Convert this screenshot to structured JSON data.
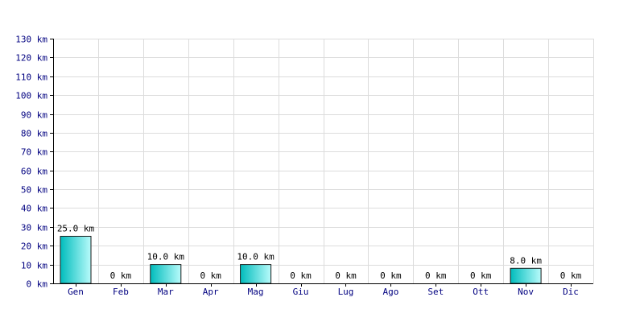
{
  "chart_data": {
    "type": "bar",
    "title": "",
    "xlabel": "",
    "ylabel": "",
    "unit": "km",
    "categories": [
      "Gen",
      "Feb",
      "Mar",
      "Apr",
      "Mag",
      "Giu",
      "Lug",
      "Ago",
      "Set",
      "Ott",
      "Nov",
      "Dic"
    ],
    "values": [
      25.0,
      0,
      10.0,
      0,
      10.0,
      0,
      0,
      0,
      0,
      0,
      8.0,
      0
    ],
    "data_labels": [
      "25.0 km",
      "0 km",
      "10.0 km",
      "0 km",
      "10.0 km",
      "0 km",
      "0 km",
      "0 km",
      "0 km",
      "0 km",
      "8.0 km",
      "0 km"
    ],
    "ylim": [
      0,
      130
    ],
    "yticks": [
      0,
      10,
      20,
      30,
      40,
      50,
      60,
      70,
      80,
      90,
      100,
      110,
      120,
      130
    ],
    "ytick_labels": [
      "0 km",
      "10 km",
      "20 km",
      "30 km",
      "40 km",
      "50 km",
      "60 km",
      "70 km",
      "80 km",
      "90 km",
      "100 km",
      "110 km",
      "120 km",
      "130 km"
    ],
    "grid": true,
    "legend": "none",
    "colors": {
      "bar_gradient_start": "#00bcbc",
      "bar_gradient_end": "#b8fbfb",
      "axis_text": "#000080",
      "grid": "#dcdcdc"
    }
  }
}
